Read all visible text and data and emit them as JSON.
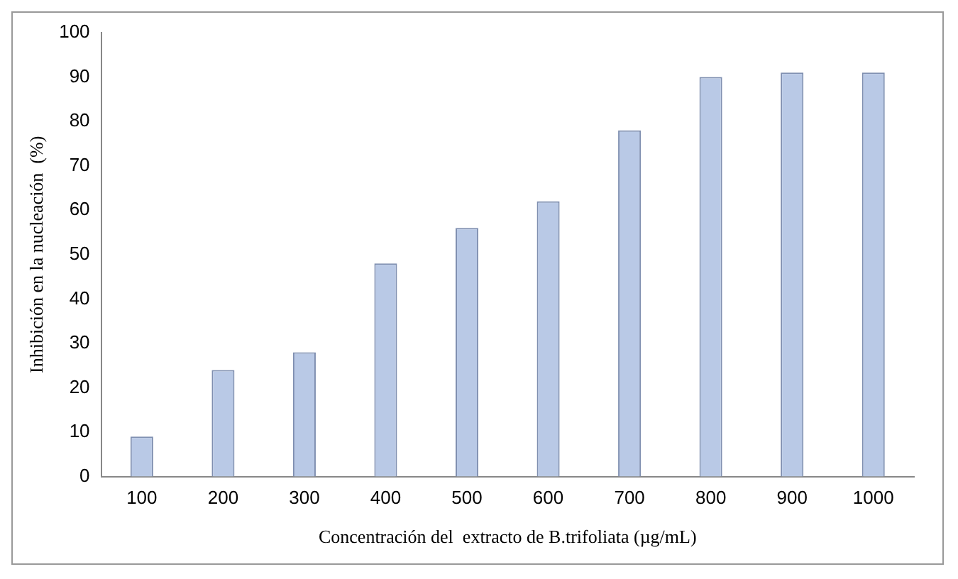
{
  "chart_data": {
    "type": "bar",
    "xlabel": "Concentración del  extracto de B.trifoliata (µg/mL)",
    "ylabel": "Inhibición en la nucleación  (%)",
    "categories": [
      "100",
      "200",
      "300",
      "400",
      "500",
      "600",
      "700",
      "800",
      "900",
      "1000"
    ],
    "values": [
      9,
      24,
      28,
      48,
      56,
      62,
      78,
      90,
      91,
      91
    ],
    "color": "#b9c9e6",
    "ylim": [
      0,
      100
    ],
    "yticks": [
      0,
      10,
      20,
      30,
      40,
      50,
      60,
      70,
      80,
      90,
      100
    ],
    "grid": false,
    "legend": false
  }
}
